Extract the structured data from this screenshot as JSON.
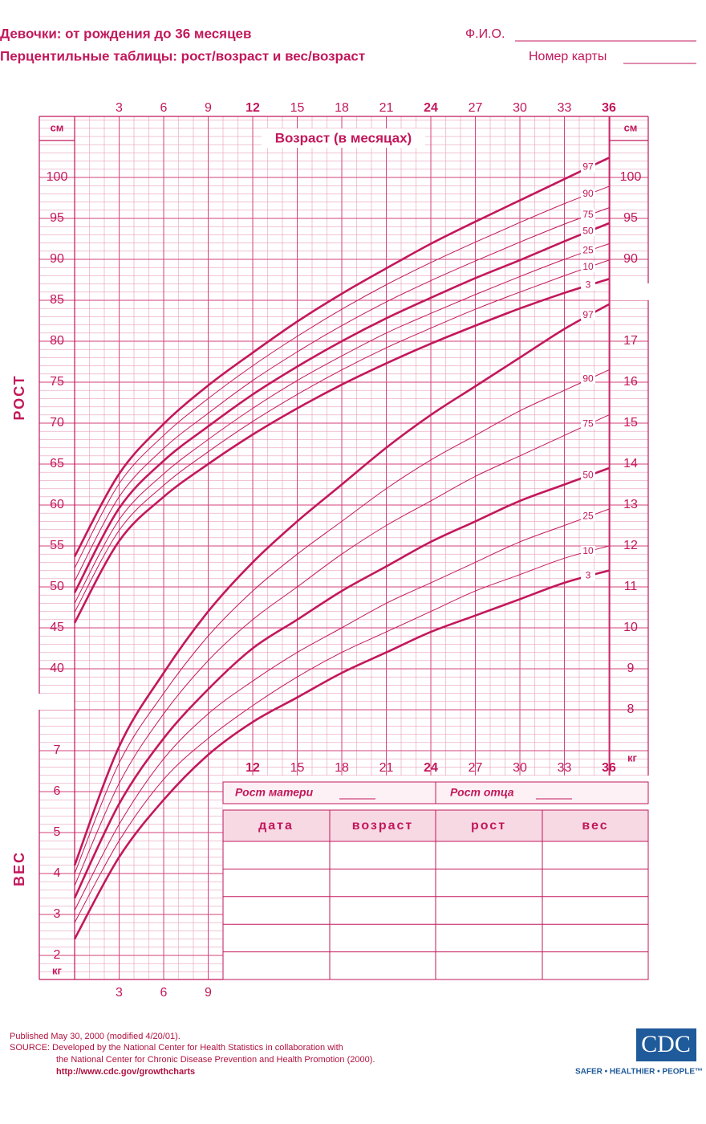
{
  "header": {
    "title": "Девочки: от рождения до 36 месяцев",
    "subtitle": "Перцентильные таблицы: рост/возраст и вес/возраст",
    "name_field": "Ф.И.О.",
    "record_field": "Номер карты"
  },
  "chart_data": [
    {
      "type": "line",
      "xlabel": "Возраст (в месяцах)",
      "ylabel": "РОСТ",
      "yunit": "см",
      "x": [
        0,
        3,
        6,
        9,
        12,
        15,
        18,
        21,
        24,
        27,
        30,
        33,
        36
      ],
      "xlim": [
        0,
        36
      ],
      "xticks": [
        3,
        6,
        9,
        12,
        15,
        18,
        21,
        24,
        27,
        30,
        33,
        36
      ],
      "ylim": [
        37,
        107.5
      ],
      "yticks": [
        40,
        45,
        50,
        55,
        60,
        65,
        70,
        75,
        80,
        85,
        90,
        95,
        100
      ],
      "grid": true,
      "series": [
        {
          "name": "97",
          "color": "#c2185b",
          "bold": true,
          "values": [
            53.7,
            63.8,
            69.9,
            74.6,
            78.6,
            82.4,
            85.8,
            88.9,
            91.9,
            94.6,
            97.2,
            99.8,
            102.4
          ]
        },
        {
          "name": "90",
          "color": "#c2185b",
          "bold": false,
          "values": [
            52.3,
            62.6,
            68.5,
            73.0,
            77.0,
            80.6,
            83.9,
            86.9,
            89.6,
            92.1,
            94.5,
            96.8,
            98.9
          ]
        },
        {
          "name": "75",
          "color": "#c2185b",
          "bold": false,
          "values": [
            50.7,
            61.0,
            66.9,
            71.2,
            75.2,
            78.7,
            81.9,
            84.8,
            87.4,
            89.8,
            92.1,
            94.3,
            96.3
          ]
        },
        {
          "name": "50",
          "color": "#c2185b",
          "bold": true,
          "values": [
            49.3,
            59.6,
            65.4,
            69.6,
            73.5,
            76.9,
            80.0,
            82.8,
            85.3,
            87.7,
            89.9,
            92.2,
            94.4
          ]
        },
        {
          "name": "25",
          "color": "#c2185b",
          "bold": false,
          "values": [
            48.0,
            58.2,
            63.8,
            68.0,
            71.8,
            75.2,
            78.2,
            81.0,
            83.4,
            85.7,
            87.9,
            90.0,
            91.9
          ]
        },
        {
          "name": "10",
          "color": "#c2185b",
          "bold": false,
          "values": [
            46.9,
            56.9,
            62.4,
            66.5,
            70.2,
            73.5,
            76.5,
            79.2,
            81.6,
            83.9,
            86.0,
            88.0,
            89.9
          ]
        },
        {
          "name": "3",
          "color": "#c2185b",
          "bold": true,
          "values": [
            45.6,
            55.6,
            61.0,
            65.0,
            68.6,
            71.8,
            74.7,
            77.3,
            79.7,
            81.9,
            84.0,
            85.9,
            87.6
          ]
        }
      ]
    },
    {
      "type": "line",
      "ylabel": "ВЕС",
      "yunit": "кг",
      "x": [
        0,
        3,
        6,
        9,
        12,
        15,
        18,
        21,
        24,
        27,
        30,
        33,
        36
      ],
      "xlim": [
        0,
        36
      ],
      "xticks": [
        3,
        6,
        9,
        12,
        15,
        18,
        21,
        24,
        27,
        30,
        33,
        36
      ],
      "ylim": [
        1.4,
        18
      ],
      "yticks": [
        2,
        3,
        4,
        5,
        6,
        7,
        8,
        9,
        10,
        11,
        12,
        13,
        14,
        15,
        16,
        17
      ],
      "grid": true,
      "series": [
        {
          "name": "97",
          "color": "#c2185b",
          "bold": true,
          "values": [
            4.2,
            7.1,
            8.9,
            10.4,
            11.6,
            12.6,
            13.5,
            14.4,
            15.2,
            15.9,
            16.6,
            17.3,
            17.9
          ]
        },
        {
          "name": "90",
          "color": "#c2185b",
          "bold": false,
          "values": [
            4.0,
            6.7,
            8.4,
            9.8,
            10.9,
            11.8,
            12.6,
            13.4,
            14.1,
            14.7,
            15.3,
            15.8,
            16.3
          ]
        },
        {
          "name": "75",
          "color": "#c2185b",
          "bold": false,
          "values": [
            3.7,
            6.2,
            7.9,
            9.2,
            10.2,
            11.0,
            11.8,
            12.5,
            13.1,
            13.7,
            14.2,
            14.7,
            15.2
          ]
        },
        {
          "name": "50",
          "color": "#c2185b",
          "bold": true,
          "values": [
            3.4,
            5.7,
            7.3,
            8.5,
            9.5,
            10.2,
            10.9,
            11.5,
            12.1,
            12.6,
            13.1,
            13.5,
            13.9
          ]
        },
        {
          "name": "25",
          "color": "#c2185b",
          "bold": false,
          "values": [
            3.1,
            5.2,
            6.8,
            7.9,
            8.7,
            9.4,
            10.0,
            10.6,
            11.1,
            11.6,
            12.1,
            12.5,
            12.9
          ]
        },
        {
          "name": "10",
          "color": "#c2185b",
          "bold": false,
          "values": [
            2.8,
            4.8,
            6.3,
            7.3,
            8.1,
            8.8,
            9.4,
            9.9,
            10.4,
            10.9,
            11.3,
            11.7,
            12.0
          ]
        },
        {
          "name": "3",
          "color": "#c2185b",
          "bold": true,
          "values": [
            2.4,
            4.4,
            5.8,
            6.9,
            7.7,
            8.3,
            8.9,
            9.4,
            9.9,
            10.3,
            10.7,
            11.1,
            11.4
          ]
        }
      ]
    }
  ],
  "record_table": {
    "mother_height": "Рост матери",
    "father_height": "Рост отца",
    "columns": [
      "дата",
      "возраст",
      "рост",
      "вес"
    ]
  },
  "footer": {
    "published": "Published May 30, 2000 (modified 4/20/01).",
    "source_line1": "SOURCE: Developed by the National Center for Health Statistics in collaboration with",
    "source_line2": "the National Center for Chronic Disease Prevention and Health Promotion (2000).",
    "url": "http://www.cdc.gov/growthcharts",
    "logo": "CDC",
    "slogan": "SAFER • HEALTHIER • PEOPLE™"
  }
}
